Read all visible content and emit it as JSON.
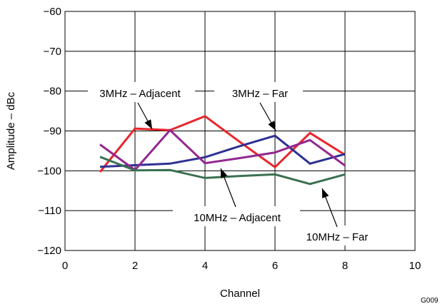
{
  "chart_data": {
    "type": "line",
    "title": "",
    "xlabel": "Channel",
    "ylabel": "Amplitude – dBc",
    "xlim": [
      0,
      10
    ],
    "ylim": [
      -120,
      -60
    ],
    "xticks": [
      0,
      2,
      4,
      6,
      8,
      10
    ],
    "xtick_labels": [
      "0",
      "2",
      "4",
      "6",
      "8",
      "10"
    ],
    "yticks": [
      -120,
      -110,
      -100,
      -90,
      -80,
      -70,
      -60
    ],
    "ytick_labels": [
      "−120",
      "−110",
      "−100",
      "−90",
      "−80",
      "−70",
      "−60"
    ],
    "grid": true,
    "x": [
      1,
      2,
      3,
      4,
      5,
      6,
      7,
      8
    ],
    "series": [
      {
        "name": "3MHz – Adjacent",
        "color": "#e8262c",
        "values": [
          -100.3,
          -89.4,
          -89.8,
          -86.3,
          -92.8,
          -99.1,
          -90.5,
          -96.0
        ]
      },
      {
        "name": "3MHz – Far",
        "color": "#2e3192",
        "values": [
          -99.0,
          -98.6,
          -98.2,
          -96.6,
          -93.8,
          -91.2,
          -98.2,
          -95.8
        ]
      },
      {
        "name": "10MHz – Adjacent",
        "color": "#93278f",
        "values": [
          -93.4,
          -99.8,
          -89.8,
          -98.1,
          -96.8,
          -95.4,
          -92.3,
          -98.7
        ]
      },
      {
        "name": "10MHz – Far",
        "color": "#3a7151",
        "values": [
          -96.5,
          -99.9,
          -99.8,
          -101.8,
          -101.3,
          -100.9,
          -103.3,
          -100.9
        ]
      }
    ],
    "annotations": [
      {
        "text": "3MHz – Adjacent",
        "series": 0
      },
      {
        "text": "3MHz – Far",
        "series": 1
      },
      {
        "text": "10MHz – Adjacent",
        "series": 2
      },
      {
        "text": "10MHz – Far",
        "series": 3
      }
    ],
    "figure_id": "G009"
  }
}
